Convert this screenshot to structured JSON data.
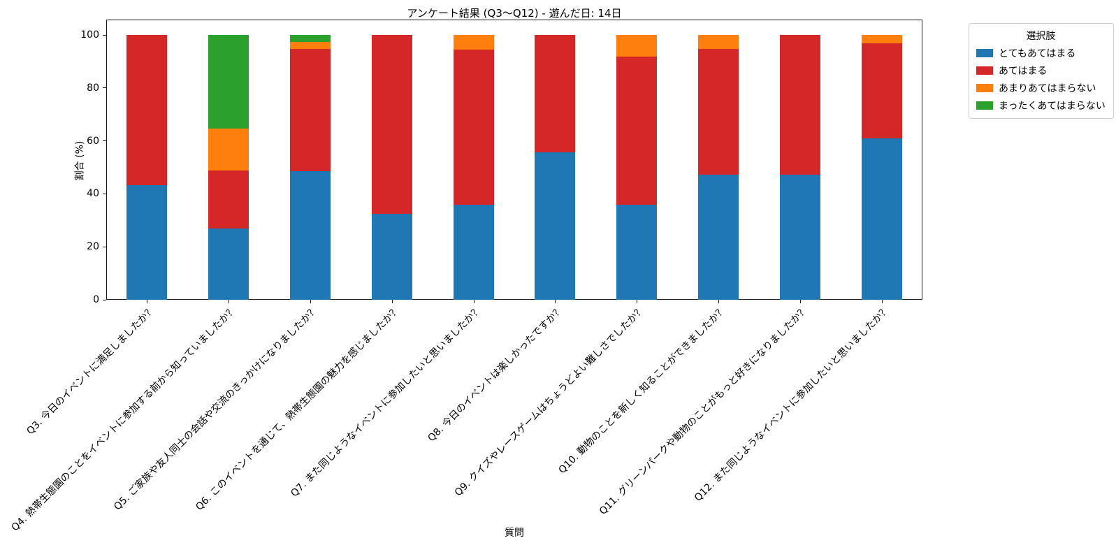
{
  "chart_data": {
    "type": "bar",
    "stacked": true,
    "title": "アンケート結果 (Q3〜Q12) - 遊んだ日: 14日",
    "xlabel": "質問",
    "ylabel": "割合 (%)",
    "ylim": [
      0,
      100
    ],
    "yticks": [
      0,
      20,
      40,
      60,
      80,
      100
    ],
    "grid": false,
    "legend_title": "選択肢",
    "legend_position": "outside upper right",
    "categories": [
      "Q3. 今日のイベントに満足しましたか？",
      "Q4. 熱帯生態園のことをイベントに参加する前から知っていましたか？",
      "Q5. ご家族や友人同士の会話や交流のきっかけになりましたか？",
      "Q6. このイベントを通じて、熱帯生態園の魅力を感じましたか？",
      "Q7. また同じようなイベントに参加したいと思いましたか？",
      "Q8. 今日のイベントは楽しかったですか？",
      "Q9. クイズやレースゲームはちょうどよい難しさでしたか？",
      "Q10. 動物のことを新しく知ることができましたか？",
      "Q11. グリーンパークや動物のことがもっと好きになりましたか？",
      "Q12. また同じようなイベントに参加したいと思いましたか？"
    ],
    "series": [
      {
        "name": "とてもあてはまる",
        "color": "#1f77b4",
        "values": [
          43.2,
          27.0,
          48.6,
          32.4,
          35.9,
          55.6,
          35.9,
          47.3,
          47.1,
          61.0
        ]
      },
      {
        "name": "あてはまる",
        "color": "#d62728",
        "values": [
          56.8,
          21.9,
          46.0,
          67.6,
          58.5,
          44.4,
          55.8,
          47.3,
          52.9,
          35.9
        ]
      },
      {
        "name": "あまりあてはまらない",
        "color": "#ff7f0e",
        "values": [
          0,
          15.8,
          2.7,
          0,
          5.6,
          0,
          8.3,
          5.4,
          0,
          3.1
        ]
      },
      {
        "name": "まったくあてはまらない",
        "color": "#2ca02c",
        "values": [
          0,
          35.3,
          2.7,
          0,
          0,
          0,
          0,
          0,
          0,
          0
        ]
      }
    ]
  }
}
